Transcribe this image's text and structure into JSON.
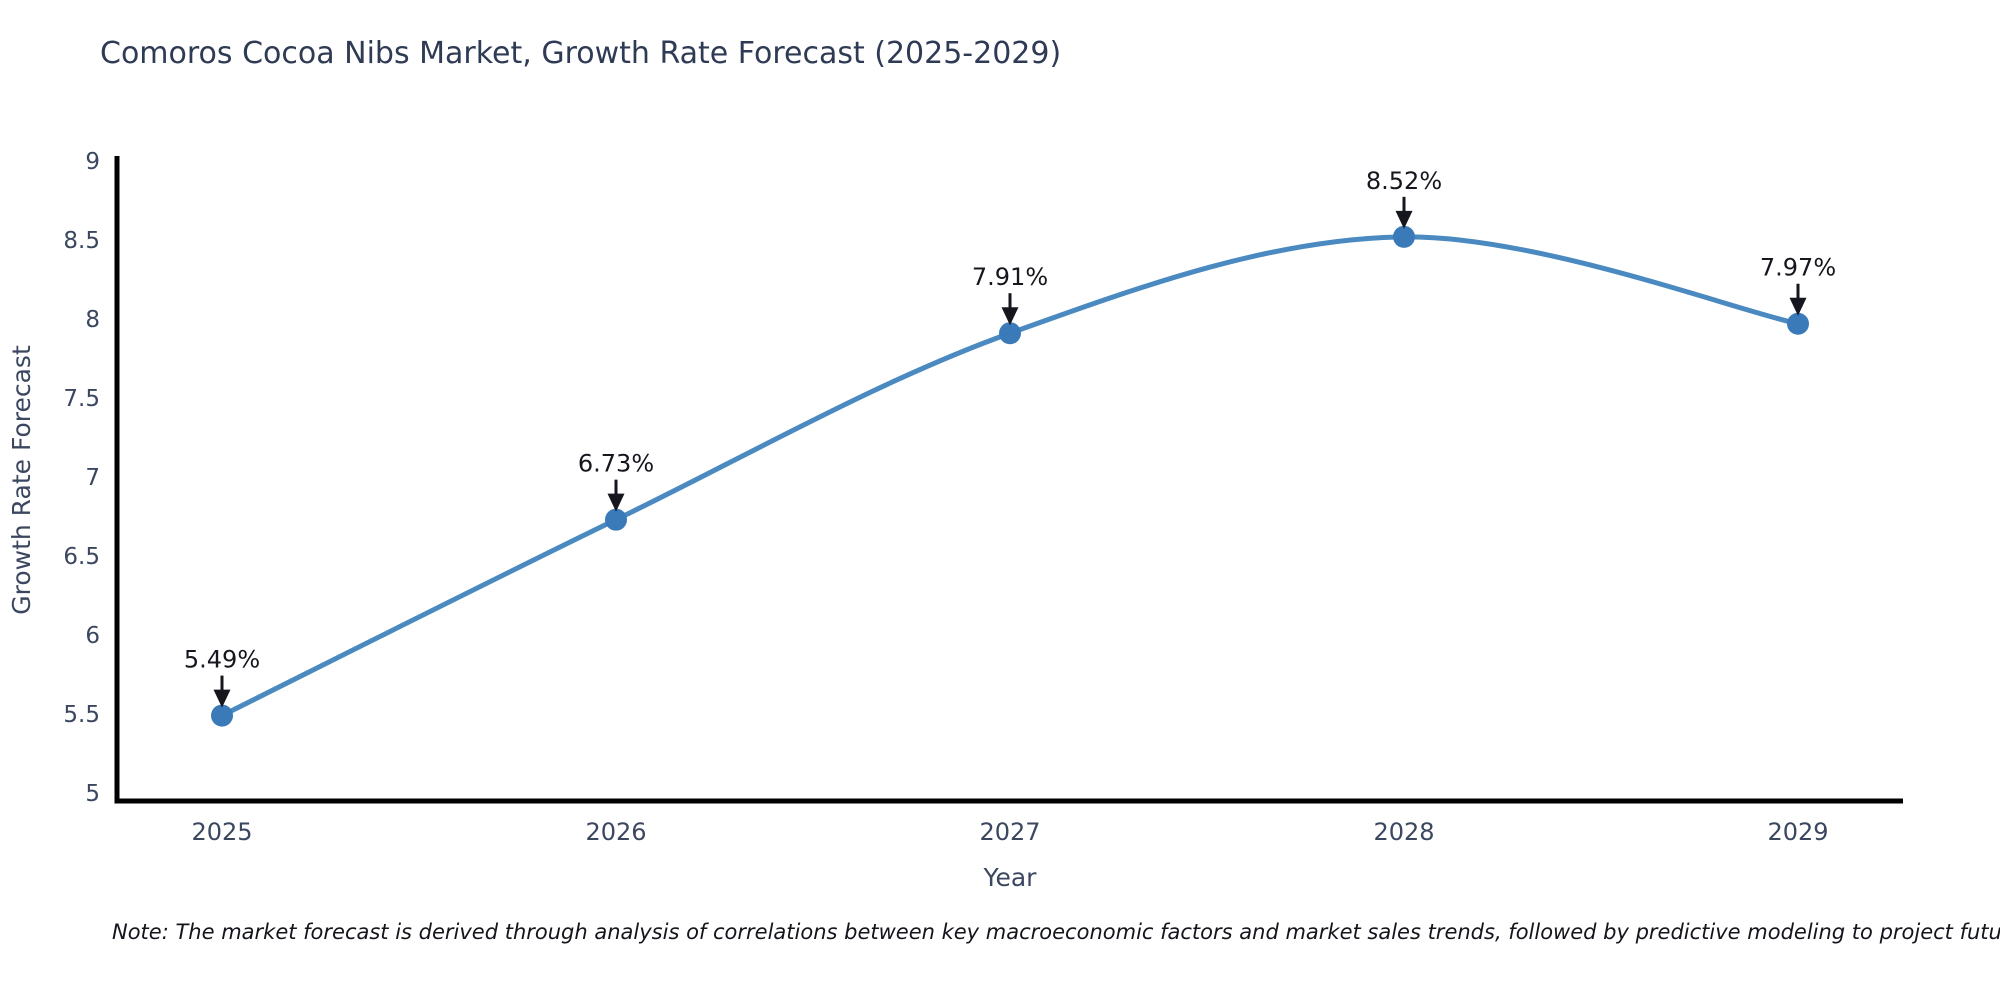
{
  "title": "Comoros Cocoa Nibs Market, Growth Rate Forecast (2025-2029)",
  "note": "Note: The market forecast is derived through analysis of correlations between key macroeconomic factors and market sales trends, followed by predictive modeling to project future sales",
  "chart_data": {
    "type": "line",
    "title": "Comoros Cocoa Nibs Market, Growth Rate Forecast (2025-2029)",
    "xlabel": "Year",
    "ylabel": "Growth Rate Forecast",
    "x": [
      2025,
      2026,
      2027,
      2028,
      2029
    ],
    "values": [
      5.49,
      6.73,
      7.91,
      8.52,
      7.97
    ],
    "labels": [
      "5.49%",
      "6.73%",
      "7.91%",
      "8.52%",
      "7.97%"
    ],
    "ylim": [
      5,
      9
    ],
    "yticks": [
      5,
      5.5,
      6,
      6.5,
      7,
      7.5,
      8,
      8.5,
      9
    ],
    "grid": false,
    "legend": "none",
    "line_shape": "spline",
    "colors": {
      "line": "#4a8ac1",
      "marker": "#3a7ab8",
      "axis": "#000000",
      "tick_label": "#3b475f",
      "annotation": "#16161f"
    }
  }
}
